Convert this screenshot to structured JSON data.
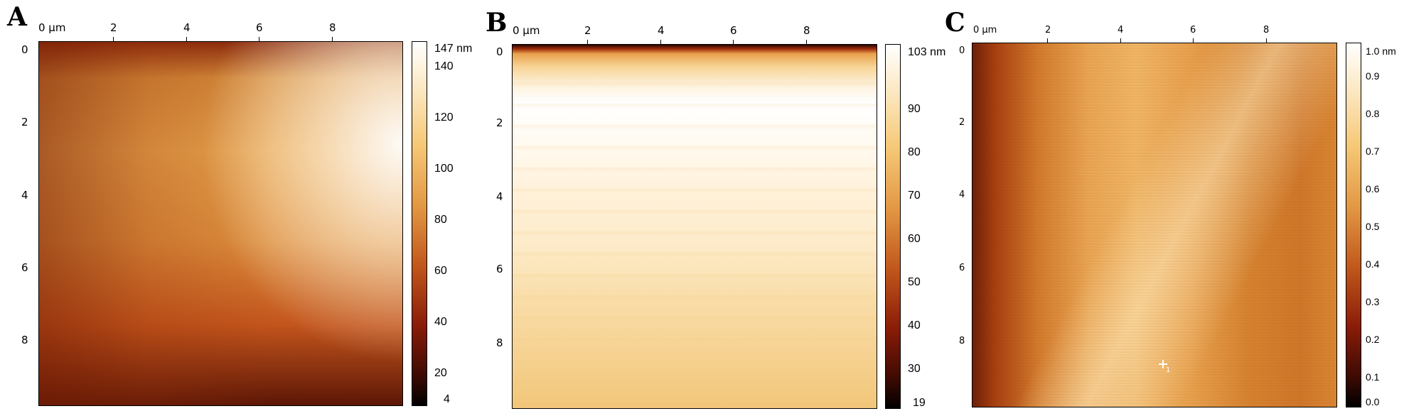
{
  "panels": [
    {
      "label": "A",
      "x_ticks": [
        "0 µm",
        "2",
        "4",
        "6",
        "8"
      ],
      "y_ticks": [
        "0",
        "2",
        "4",
        "6",
        "8"
      ],
      "colorbar_ticks": [
        "147 nm",
        "140",
        "120",
        "100",
        "80",
        "60",
        "40",
        "20",
        "4"
      ],
      "colorbar_values": [
        147,
        140,
        120,
        100,
        80,
        60,
        40,
        20,
        4
      ],
      "colorbar_range": [
        4,
        147
      ]
    },
    {
      "label": "B",
      "x_ticks": [
        "0 µm",
        "2",
        "4",
        "6",
        "8"
      ],
      "y_ticks": [
        "0",
        "2",
        "4",
        "6",
        "8"
      ],
      "colorbar_ticks": [
        "103 nm",
        "90",
        "80",
        "70",
        "60",
        "50",
        "40",
        "30",
        "19"
      ],
      "colorbar_values": [
        103,
        90,
        80,
        70,
        60,
        50,
        40,
        30,
        19
      ],
      "colorbar_range": [
        19,
        103
      ]
    },
    {
      "label": "C",
      "x_ticks": [
        "0 µm",
        "2",
        "4",
        "6",
        "8"
      ],
      "y_ticks": [
        "0",
        "2",
        "4",
        "6",
        "8"
      ],
      "colorbar_ticks": [
        "1.0 nm",
        "0.9",
        "0.8",
        "0.7",
        "0.6",
        "0.5",
        "0.4",
        "0.3",
        "0.2",
        "0.1",
        "0.0"
      ],
      "colorbar_values": [
        1.0,
        0.9,
        0.8,
        0.7,
        0.6,
        0.5,
        0.4,
        0.3,
        0.2,
        0.1,
        0.0
      ],
      "colorbar_range": [
        0.0,
        1.0
      ]
    }
  ],
  "marker": {
    "label": "1"
  },
  "colormap": "afmhot"
}
